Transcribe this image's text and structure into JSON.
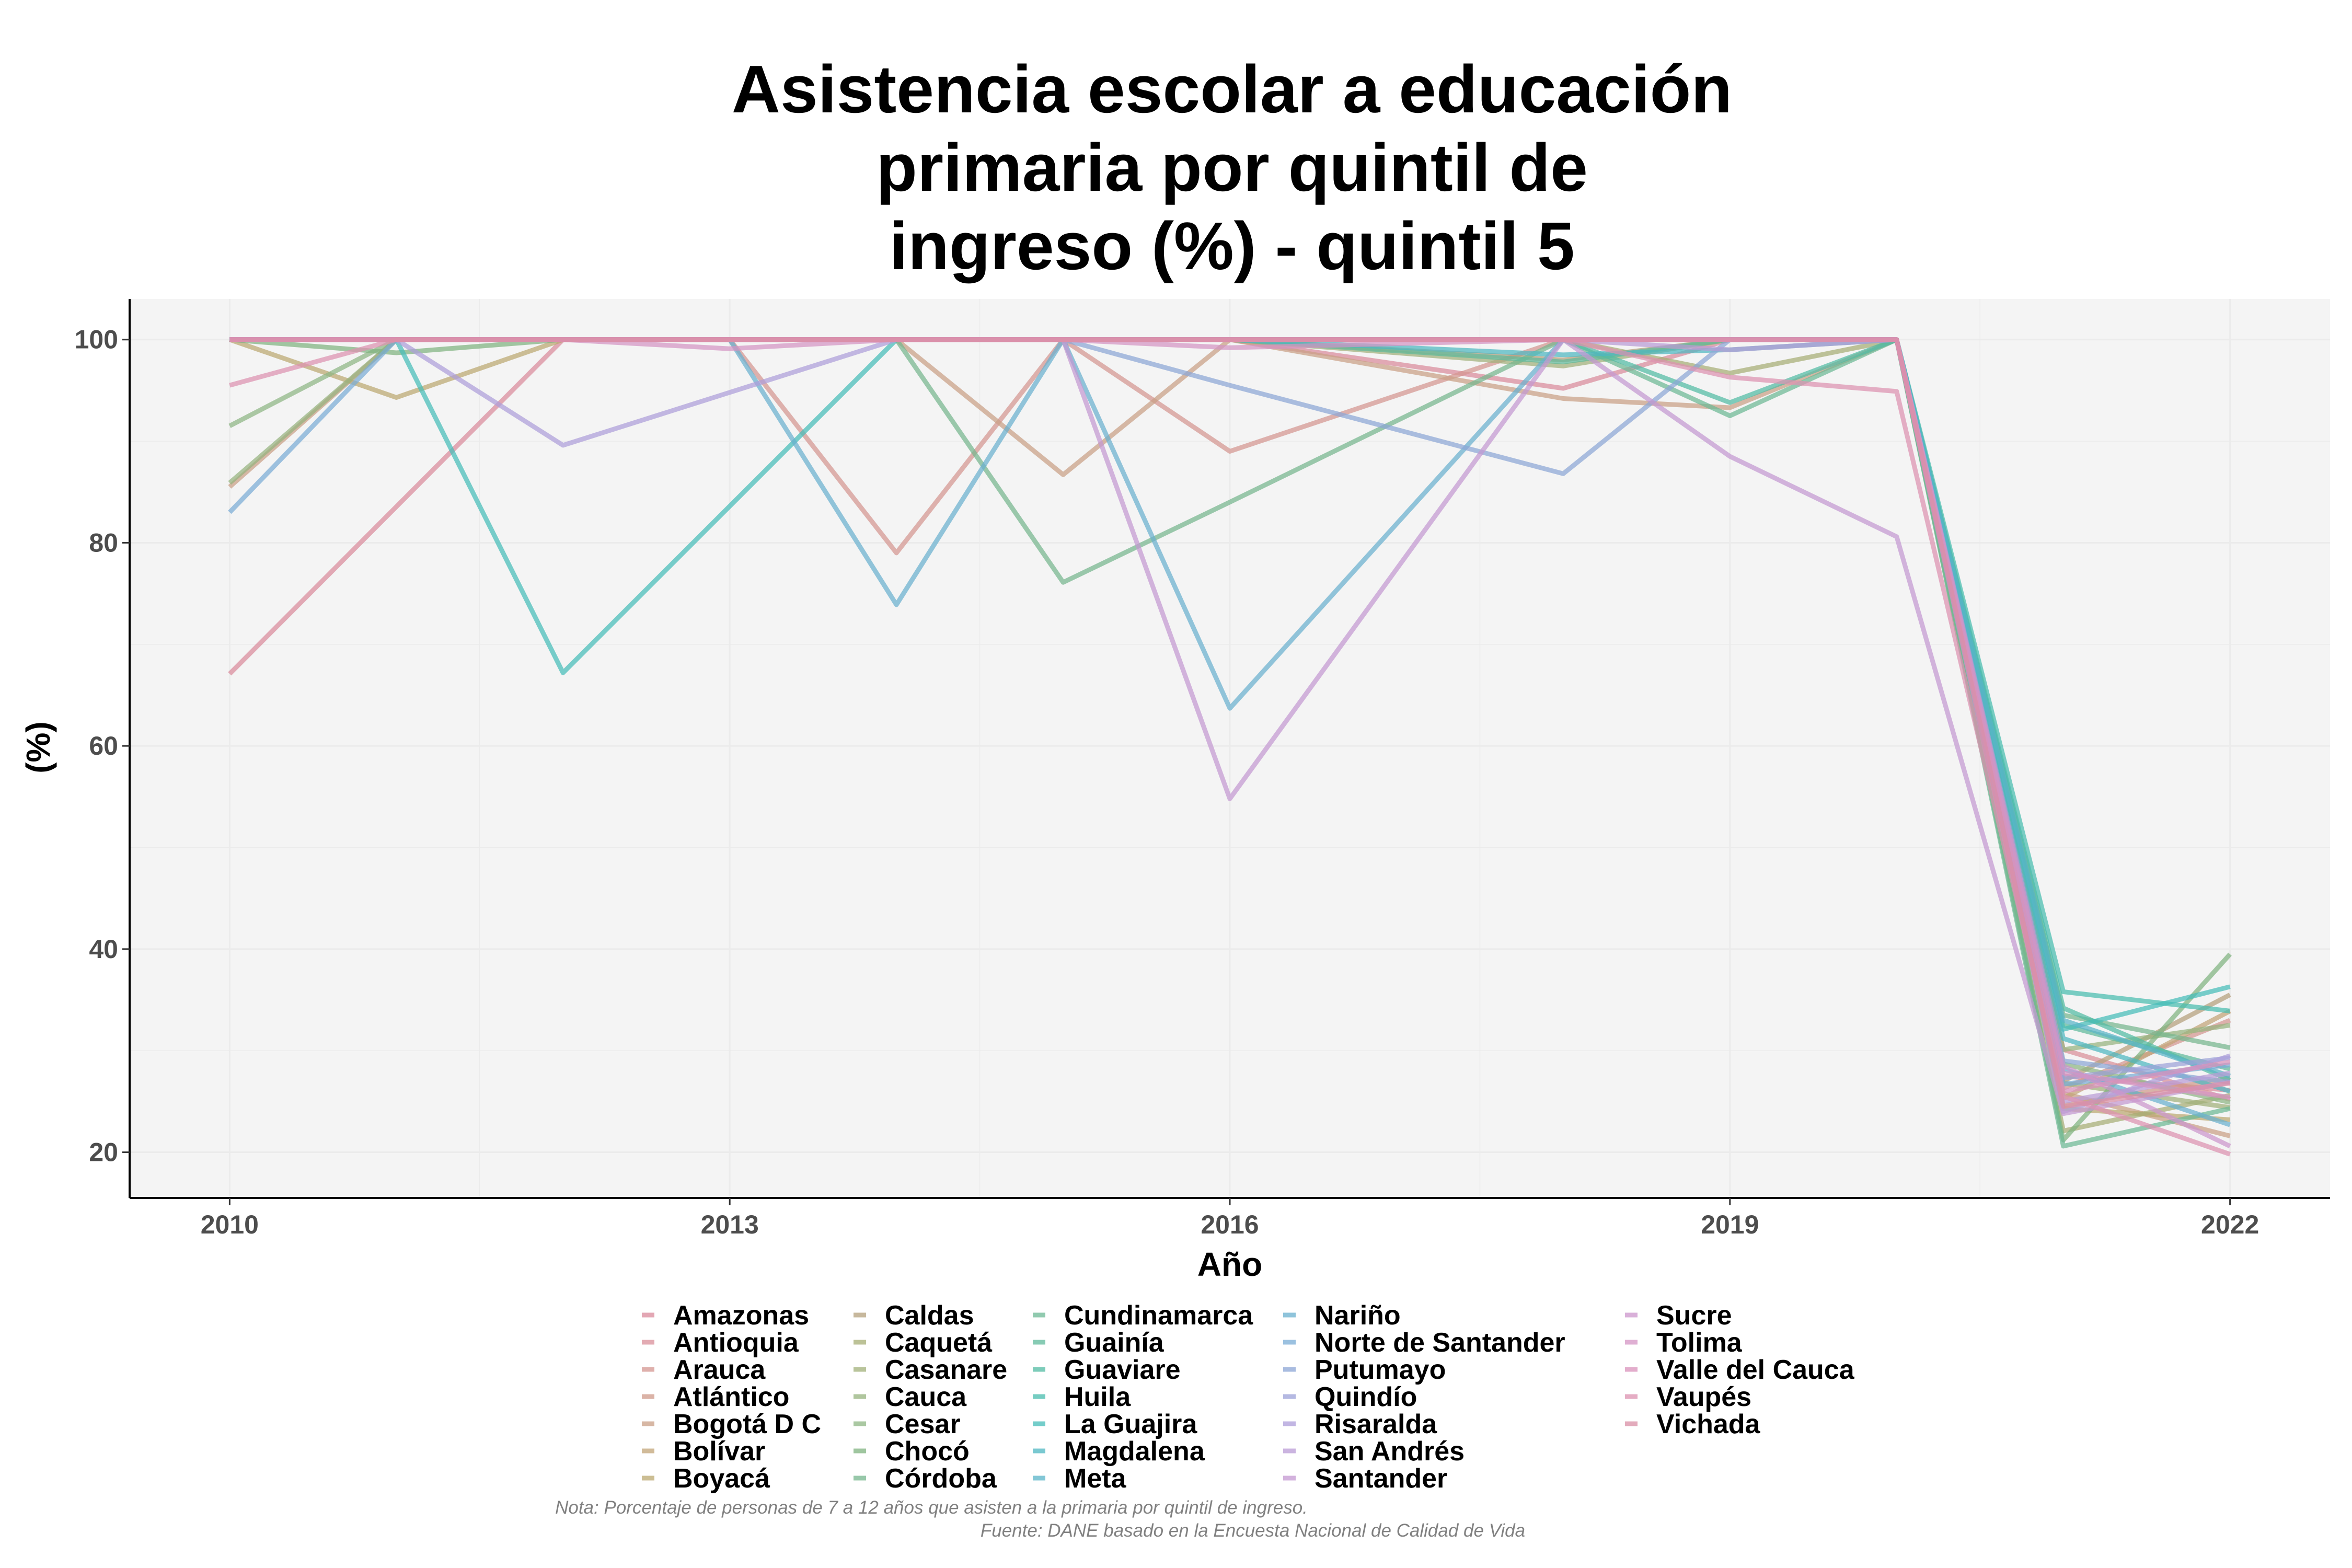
{
  "chart_data": {
    "type": "line",
    "title": [
      "Asistencia escolar a educación",
      "primaria por quintil de",
      "ingreso (%) - quintil 5"
    ],
    "xlabel": "Año",
    "ylabel": "(%)",
    "x_ticks": [
      2010,
      2013,
      2016,
      2019,
      2022
    ],
    "y_ticks": [
      20,
      40,
      60,
      80,
      100
    ],
    "xlim": [
      2009.4,
      2022.6
    ],
    "ylim": [
      15.5,
      104
    ],
    "grid": true,
    "legend_position": "bottom",
    "note": "Nota: Porcentaje de personas de 7 a 12 años que asisten a la primaria por quintil de ingreso.",
    "source": "Fuente: DANE basado en la Encuesta Nacional de Calidad de Vida",
    "x": [
      2010,
      2011,
      2012,
      2013,
      2014,
      2015,
      2016,
      2018,
      2019,
      2020,
      2021,
      2022
    ],
    "series": [
      {
        "name": "Amazonas",
        "color": "#d98a9b",
        "values": [
          67.1,
          null,
          100,
          null,
          100,
          100,
          100,
          95.2,
          100,
          100,
          27.5,
          26.1
        ]
      },
      {
        "name": "Antioquia",
        "color": "#d98f99",
        "values": [
          100,
          100,
          100,
          100,
          100,
          100,
          100,
          100,
          100,
          100,
          30.1,
          25.2
        ]
      },
      {
        "name": "Arauca",
        "color": "#d49590",
        "values": [
          100,
          100,
          100,
          100,
          79.0,
          100,
          89.0,
          100,
          100,
          100,
          26.3,
          33.0
        ]
      },
      {
        "name": "Atlántico",
        "color": "#cf9a8a",
        "values": [
          100,
          100,
          100,
          100,
          100,
          100,
          100,
          100,
          100,
          100,
          24.6,
          27.3
        ]
      },
      {
        "name": "Bogotá D C",
        "color": "#c99f85",
        "values": [
          85.5,
          100,
          100,
          100,
          100,
          86.7,
          100,
          94.2,
          93.3,
          100,
          25.8,
          21.6
        ]
      },
      {
        "name": "Bolívar",
        "color": "#c2a477",
        "values": [
          100,
          100,
          100,
          100,
          100,
          100,
          100,
          100,
          100,
          100,
          25.3,
          33.9
        ]
      },
      {
        "name": "Boyacá",
        "color": "#bba870",
        "values": [
          100,
          94.3,
          100,
          100,
          100,
          100,
          100,
          100,
          100,
          100,
          24.3,
          23.2
        ]
      },
      {
        "name": "Caldas",
        "color": "#b4a07c",
        "values": [
          100,
          100,
          100,
          100,
          100,
          100,
          100,
          98.0,
          100,
          100,
          27.0,
          35.5
        ]
      },
      {
        "name": "Caquetá",
        "color": "#a6ad74",
        "values": [
          100,
          100,
          100,
          100,
          100,
          100,
          100,
          100,
          96.7,
          100,
          22.1,
          25.6
        ]
      },
      {
        "name": "Casanare",
        "color": "#a1b07a",
        "values": [
          100,
          100,
          100,
          100,
          100,
          100,
          100,
          97.4,
          100,
          100,
          26.8,
          24.4
        ]
      },
      {
        "name": "Cauca",
        "color": "#96b37e",
        "values": [
          85.9,
          100,
          100,
          100,
          100,
          100,
          100,
          100,
          100,
          100,
          30.1,
          32.5
        ]
      },
      {
        "name": "Cesar",
        "color": "#8db583",
        "values": [
          91.5,
          100,
          100,
          100,
          100,
          100,
          100,
          100,
          100,
          100,
          28.7,
          24.9
        ]
      },
      {
        "name": "Chocó",
        "color": "#7fb37f",
        "values": [
          100,
          98.7,
          100,
          100,
          100,
          100,
          100,
          100,
          100,
          100,
          21.2,
          39.5
        ]
      },
      {
        "name": "Córdoba",
        "color": "#76b68e",
        "values": [
          100,
          100,
          100,
          100,
          100,
          76.1,
          84.0,
          100,
          100,
          100,
          33.5,
          30.3
        ]
      },
      {
        "name": "Cundinamarca",
        "color": "#6cb894",
        "values": [
          100,
          100,
          100,
          100,
          100,
          100,
          100,
          100,
          92.5,
          100,
          20.6,
          24.3
        ]
      },
      {
        "name": "Guainía",
        "color": "#5fba9b",
        "values": [
          100,
          100,
          100,
          100,
          100,
          100,
          100,
          97.8,
          100,
          100,
          32.5,
          28.2
        ]
      },
      {
        "name": "Guaviare",
        "color": "#52bba3",
        "values": [
          100,
          100,
          100,
          100,
          100,
          100,
          100,
          100,
          93.8,
          100,
          34.2,
          27.1
        ]
      },
      {
        "name": "Huila",
        "color": "#48bcae",
        "values": [
          100,
          100,
          100,
          100,
          100,
          100,
          100,
          100,
          100,
          100,
          35.8,
          33.9
        ]
      },
      {
        "name": "La Guajira",
        "color": "#45bcb8",
        "values": [
          100,
          100,
          67.2,
          null,
          100,
          100,
          100,
          100,
          100,
          100,
          32.1,
          36.3
        ]
      },
      {
        "name": "Magdalena",
        "color": "#4db7c1",
        "values": [
          100,
          100,
          100,
          100,
          100,
          100,
          100,
          98.5,
          99.0,
          100,
          31.2,
          26.0
        ]
      },
      {
        "name": "Meta",
        "color": "#5ab4c8",
        "values": [
          100,
          100,
          100,
          100,
          100,
          100,
          100,
          100,
          100,
          100,
          33.0,
          27.5
        ]
      },
      {
        "name": "Nariño",
        "color": "#6ab0cf",
        "values": [
          100,
          100,
          100,
          100,
          73.9,
          100,
          63.7,
          100,
          100,
          100,
          28.2,
          22.7
        ]
      },
      {
        "name": "Norte de Santander",
        "color": "#7aacd5",
        "values": [
          83.0,
          100,
          100,
          100,
          100,
          100,
          100,
          100,
          100,
          100,
          26.7,
          28.6
        ]
      },
      {
        "name": "Putumayo",
        "color": "#8ca6d6",
        "values": [
          100,
          100,
          100,
          100,
          100,
          100,
          95.5,
          86.8,
          100,
          100,
          29.0,
          26.9
        ]
      },
      {
        "name": "Quindío",
        "color": "#9ca2d8",
        "values": [
          100,
          100,
          100,
          100,
          100,
          100,
          100,
          100,
          100,
          100,
          27.3,
          29.3
        ]
      },
      {
        "name": "Risaralda",
        "color": "#ad9ed9",
        "values": [
          100,
          100,
          89.6,
          null,
          100,
          100,
          100,
          100,
          100,
          100,
          24.0,
          29.5
        ]
      },
      {
        "name": "San Andrés",
        "color": "#b99bd6",
        "values": [
          100,
          100,
          100,
          100,
          100,
          100,
          100,
          100,
          99.0,
          100,
          25.0,
          27.8
        ]
      },
      {
        "name": "Santander",
        "color": "#c498d1",
        "values": [
          100,
          100,
          100,
          100,
          100,
          100,
          54.8,
          100,
          88.5,
          80.6,
          23.8,
          26.9
        ]
      },
      {
        "name": "Sucre",
        "color": "#cc96cc",
        "values": [
          100,
          100,
          100,
          100,
          100,
          100,
          100,
          100,
          100,
          100,
          28.5,
          20.6
        ]
      },
      {
        "name": "Tolima",
        "color": "#d494c4",
        "values": [
          100,
          100,
          100,
          99.1,
          100,
          100,
          99.2,
          100,
          100,
          100,
          27.8,
          25.4
        ]
      },
      {
        "name": "Valle del Cauca",
        "color": "#d992bb",
        "values": [
          100,
          100,
          100,
          100,
          100,
          100,
          100,
          100,
          100,
          100,
          26.0,
          28.9
        ]
      },
      {
        "name": "Vaupés",
        "color": "#dc91b0",
        "values": [
          95.5,
          100,
          100,
          100,
          100,
          100,
          100,
          100,
          96.3,
          94.9,
          25.5,
          19.8
        ]
      },
      {
        "name": "Vichada",
        "color": "#d98fa6",
        "values": [
          100,
          100,
          100,
          100,
          100,
          100,
          100,
          100,
          100,
          100,
          24.5,
          26.8
        ]
      }
    ]
  }
}
